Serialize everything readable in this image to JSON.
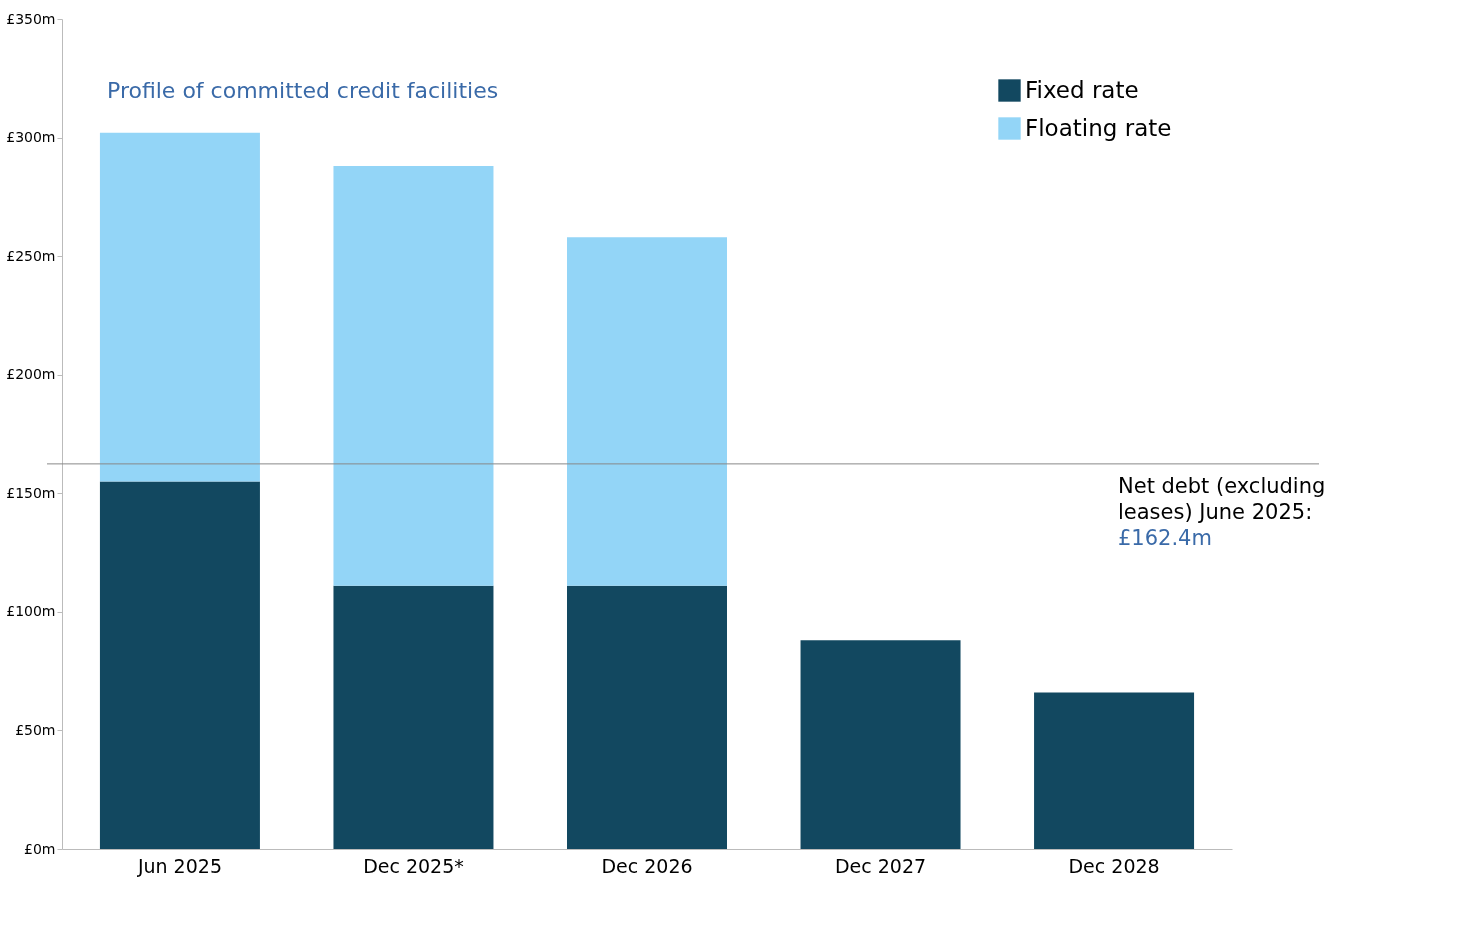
{
  "chart_data": {
    "type": "bar",
    "stacked": true,
    "title": "Profile of committed credit facilities",
    "categories": [
      "Jun 2025",
      "Dec 2025*",
      "Dec 2026",
      "Dec 2027",
      "Dec 2028"
    ],
    "series": [
      {
        "name": "Fixed rate",
        "color": "#124860",
        "values": [
          155,
          111,
          111,
          88,
          66
        ]
      },
      {
        "name": "Floating rate",
        "color": "#93d5f7",
        "values": [
          147,
          177,
          147,
          null,
          null
        ]
      }
    ],
    "ylim": [
      0,
      350
    ],
    "yticks": [
      {
        "value": 0,
        "label": "£0m"
      },
      {
        "value": 50,
        "label": "£50m"
      },
      {
        "value": 100,
        "label": "£100m"
      },
      {
        "value": 150,
        "label": "£150m"
      },
      {
        "value": 200,
        "label": "£200m"
      },
      {
        "value": 250,
        "label": "£250m"
      },
      {
        "value": 300,
        "label": "£300m"
      },
      {
        "value": 350,
        "label": "£350m"
      }
    ],
    "ref_lines": [
      {
        "axis": "y",
        "value": 162.4,
        "label": "Net debt (excluding leases) June 2025:",
        "color": "#888888"
      }
    ],
    "annotations": [
      {
        "text": "£162.4m",
        "y": 162.4
      }
    ],
    "grid": false,
    "legend": "top right"
  }
}
